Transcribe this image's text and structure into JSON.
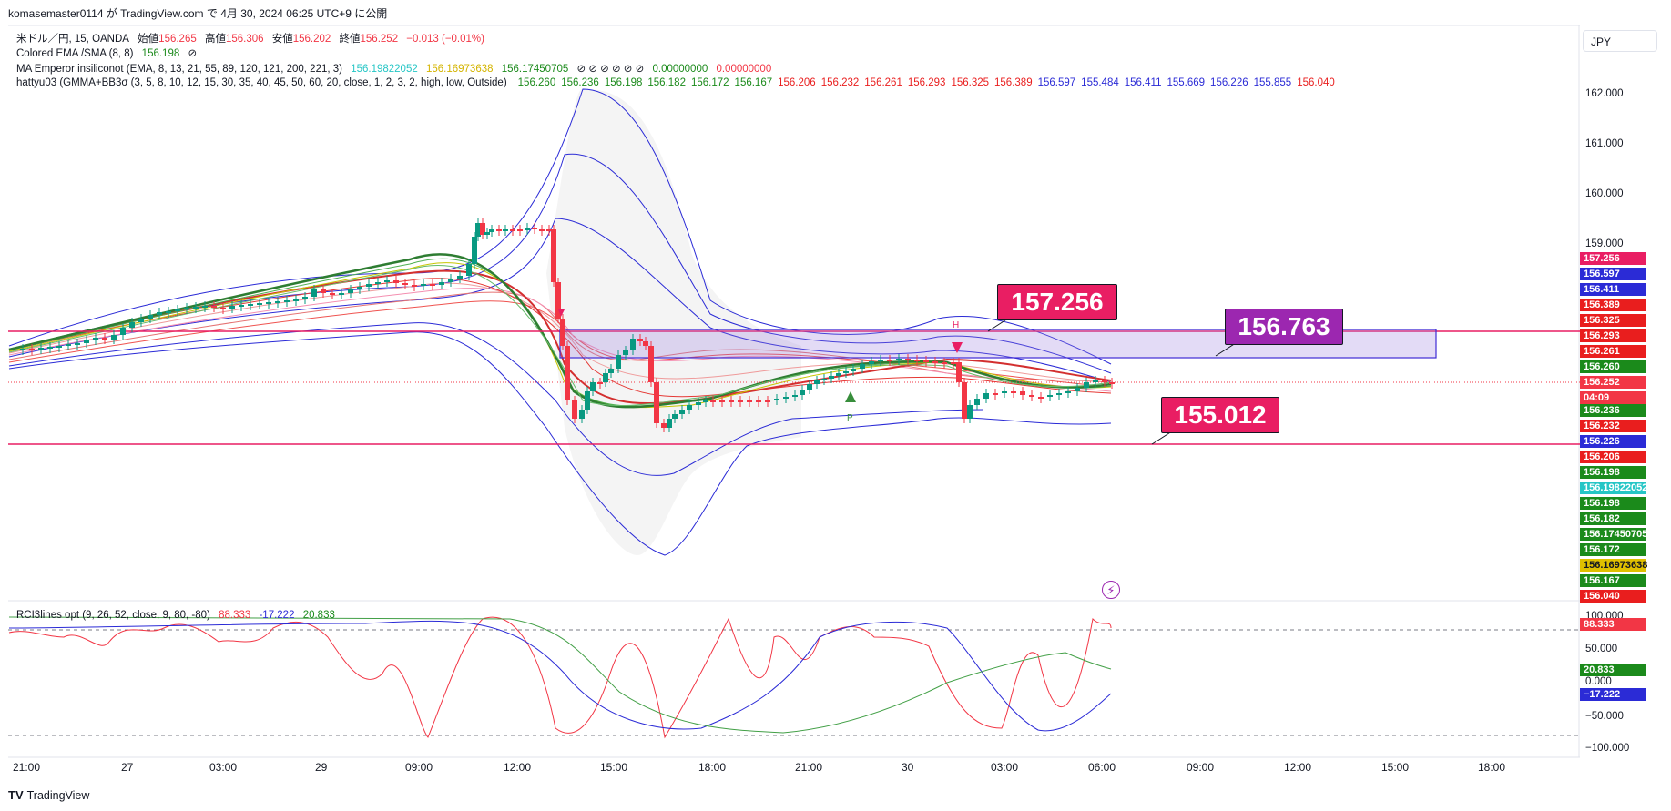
{
  "header": {
    "published_line": "komasemaster0114 が TradingView.com で 4月 30, 2024 06:25 UTC+9 に公開"
  },
  "currency_button": "JPY",
  "legend": {
    "symbol": {
      "name": "米ドル／円, 15, OANDA",
      "open_label": "始値",
      "open": "156.265",
      "high_label": "高値",
      "high": "156.306",
      "low_label": "安値",
      "low": "156.202",
      "close_label": "終値",
      "close": "156.252",
      "change": "−0.013 (−0.01%)"
    },
    "ema_line": {
      "label": "Colored EMA /SMA (8, 8)",
      "value": "156.198",
      "icon": "⊘"
    },
    "emperor_line": {
      "label": "MA Emperor insiliconot (EMA, 8, 13, 21, 55, 89, 120, 121, 200, 221, 3)",
      "v1": "156.19822052",
      "v2": "156.16973638",
      "v3": "156.17450705",
      "icons": "⊘ ⊘ ⊘ ⊘ ⊘ ⊘",
      "v4": "0.00000000",
      "v5": "0.00000000"
    },
    "hattyu_line": {
      "label": "hattyu03 (GMMA+BB3σ (3, 5, 8, 10, 12, 15, 30, 35, 40, 45, 50, 60, 20, close, 1, 2, 3, 2, high, low, Outside)",
      "values": [
        {
          "v": "156.260",
          "c": "#1b8a1b"
        },
        {
          "v": "156.236",
          "c": "#1b8a1b"
        },
        {
          "v": "156.198",
          "c": "#1b8a1b"
        },
        {
          "v": "156.182",
          "c": "#1b8a1b"
        },
        {
          "v": "156.172",
          "c": "#1b8a1b"
        },
        {
          "v": "156.167",
          "c": "#1b8a1b"
        },
        {
          "v": "156.206",
          "c": "#e91e1e"
        },
        {
          "v": "156.232",
          "c": "#e91e1e"
        },
        {
          "v": "156.261",
          "c": "#e91e1e"
        },
        {
          "v": "156.293",
          "c": "#e91e1e"
        },
        {
          "v": "156.325",
          "c": "#e91e1e"
        },
        {
          "v": "156.389",
          "c": "#e91e1e"
        },
        {
          "v": "156.597",
          "c": "#2b2bd6"
        },
        {
          "v": "155.484",
          "c": "#2b2bd6"
        },
        {
          "v": "156.411",
          "c": "#2b2bd6"
        },
        {
          "v": "155.669",
          "c": "#2b2bd6"
        },
        {
          "v": "156.226",
          "c": "#2b2bd6"
        },
        {
          "v": "155.855",
          "c": "#2b2bd6"
        },
        {
          "v": "156.040",
          "c": "#e91e1e"
        }
      ]
    },
    "rci_line": {
      "label": "RCI3lines opt (9, 26, 52, close, 9, 80, -80)",
      "v1": "88.333",
      "v2": "-17.222",
      "v3": "20.833"
    }
  },
  "price_axis": [
    "162.000",
    "161.000",
    "160.000",
    "159.000"
  ],
  "price_boxes": [
    {
      "v": "157.256",
      "bg": "#e91e63"
    },
    {
      "v": "156.597",
      "bg": "#2b2bd6"
    },
    {
      "v": "156.411",
      "bg": "#2b2bd6"
    },
    {
      "v": "156.389",
      "bg": "#e91e1e"
    },
    {
      "v": "156.325",
      "bg": "#e91e1e"
    },
    {
      "v": "156.293",
      "bg": "#e91e1e"
    },
    {
      "v": "156.261",
      "bg": "#e91e1e"
    },
    {
      "v": "156.260",
      "bg": "#1b8a1b"
    },
    {
      "v": "156.252",
      "bg": "#f23645"
    },
    {
      "v": "04:09",
      "bg": "#f23645"
    },
    {
      "v": "156.236",
      "bg": "#1b8a1b"
    },
    {
      "v": "156.232",
      "bg": "#e91e1e"
    },
    {
      "v": "156.226",
      "bg": "#2b2bd6"
    },
    {
      "v": "156.206",
      "bg": "#e91e1e"
    },
    {
      "v": "156.198",
      "bg": "#1b8a1b"
    },
    {
      "v": "156.19822052",
      "bg": "#26c6c6"
    },
    {
      "v": "156.198",
      "bg": "#1b8a1b"
    },
    {
      "v": "156.182",
      "bg": "#1b8a1b"
    },
    {
      "v": "156.17450705",
      "bg": "#1b8a1b"
    },
    {
      "v": "156.172",
      "bg": "#1b8a1b"
    },
    {
      "v": "156.16973638",
      "bg": "#e0c000"
    },
    {
      "v": "156.167",
      "bg": "#1b8a1b"
    },
    {
      "v": "156.040",
      "bg": "#e91e1e"
    }
  ],
  "rci_axis": [
    "100.000",
    "50.000",
    "0.000",
    "−50.000",
    "−100.000"
  ],
  "rci_boxes": [
    {
      "v": "88.333",
      "bg": "#f23645"
    },
    {
      "v": "20.833",
      "bg": "#1b8a1b"
    },
    {
      "v": "−17.222",
      "bg": "#2b2bd6"
    }
  ],
  "time_axis": [
    "21:00",
    "27",
    "03:00",
    "29",
    "09:00",
    "12:00",
    "15:00",
    "18:00",
    "21:00",
    "30",
    "03:00",
    "06:00",
    "09:00",
    "12:00",
    "15:00",
    "18:00"
  ],
  "callouts": [
    {
      "label": "157.256",
      "bg": "#e91e63"
    },
    {
      "label": "156.763",
      "bg": "#9c27b0"
    },
    {
      "label": "155.012",
      "bg": "#e91e63"
    }
  ],
  "markers": {
    "p_label": "P",
    "h_label": "H"
  },
  "brand": {
    "logo": "TV",
    "name": "TradingView"
  },
  "flash_icon": "⚡"
}
